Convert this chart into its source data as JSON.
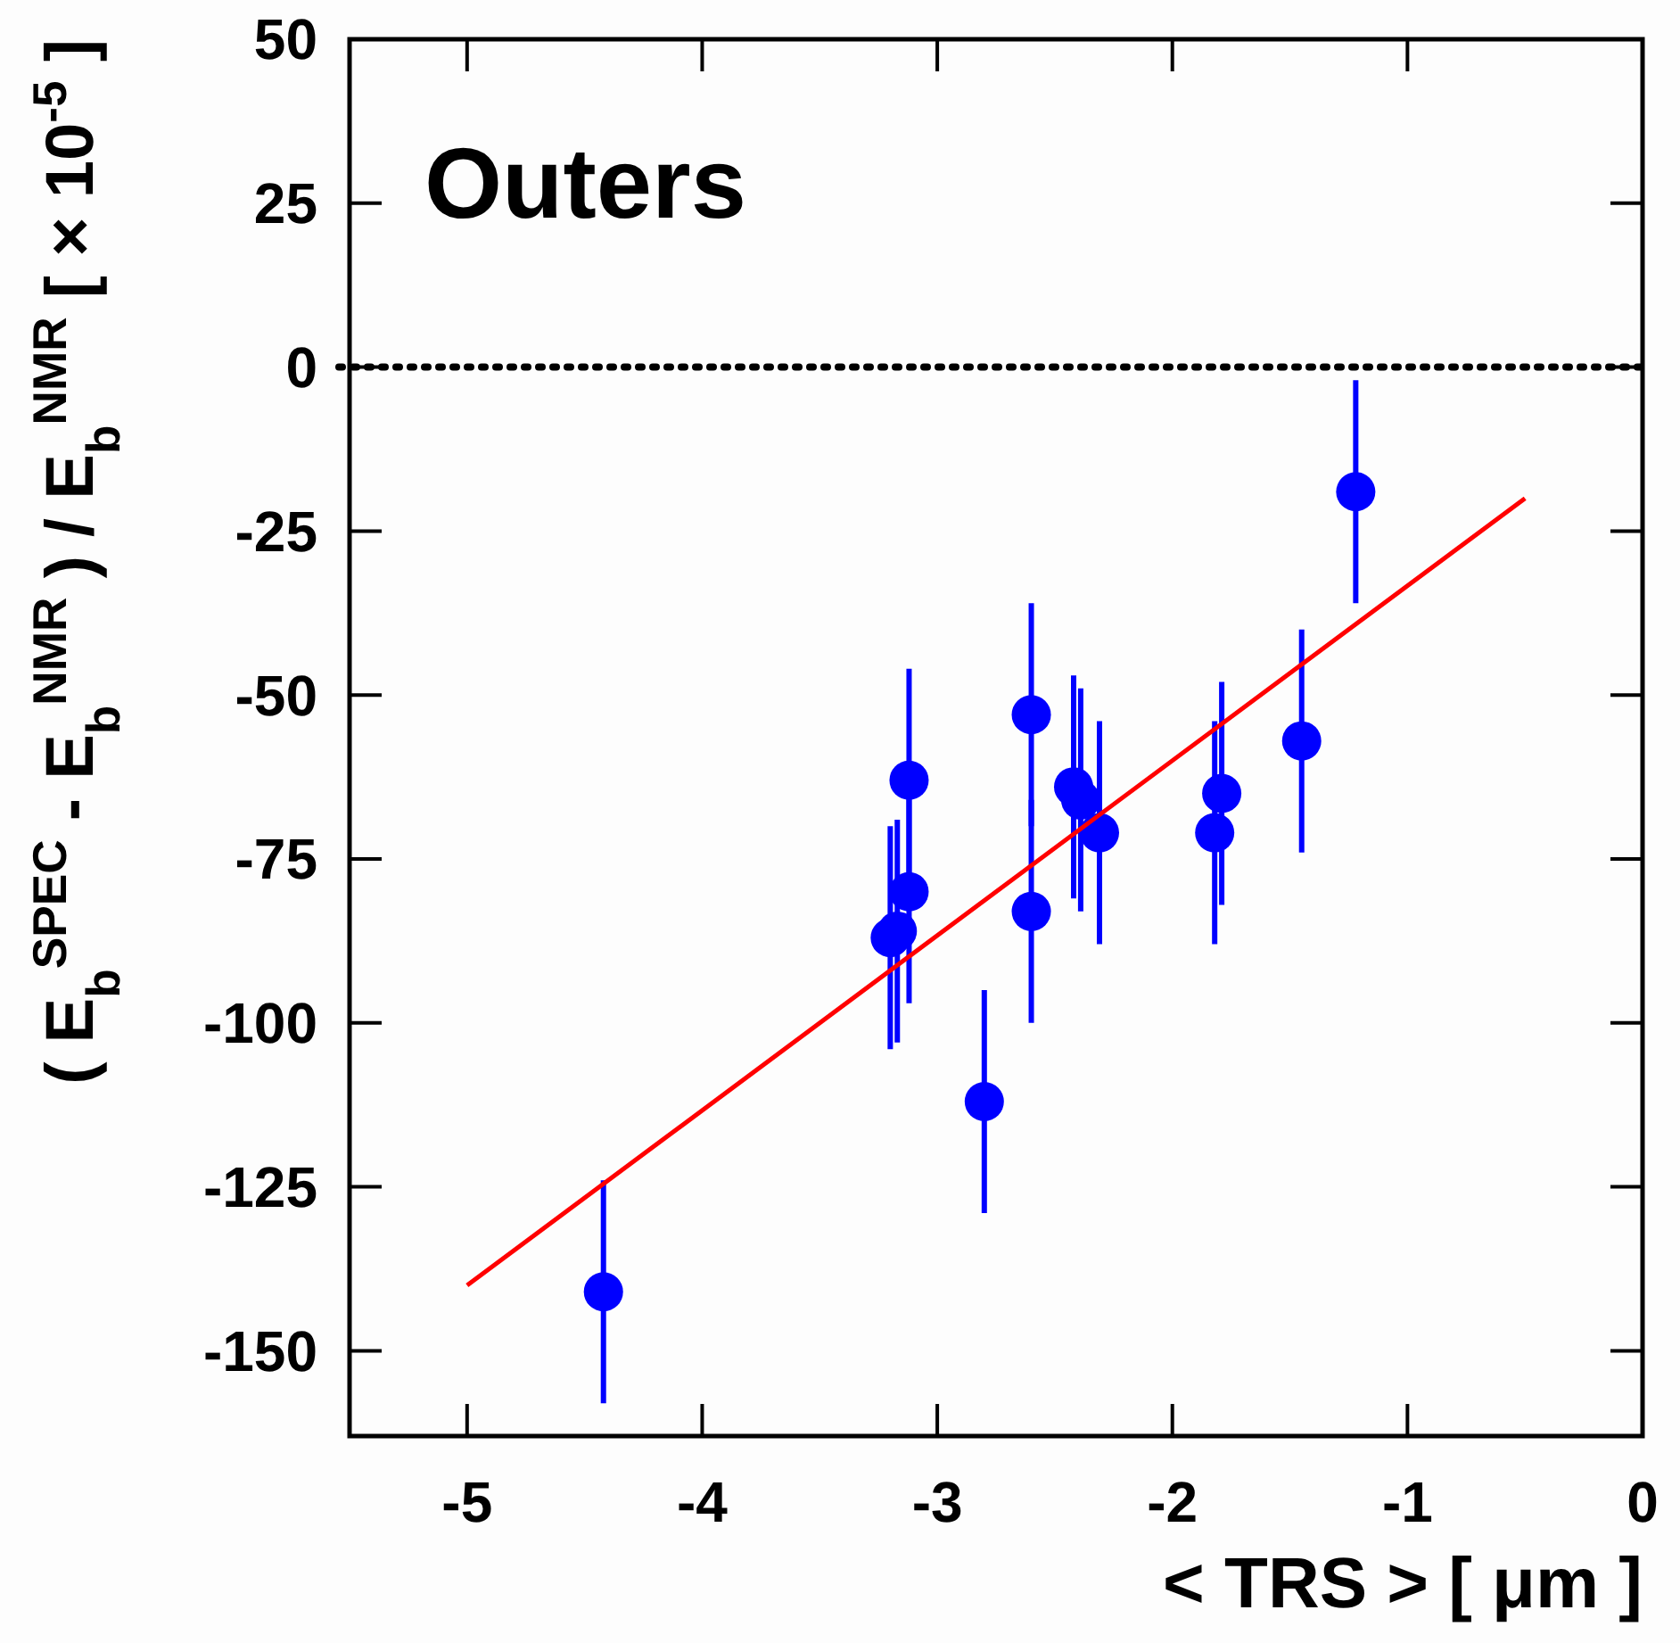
{
  "chart_data": {
    "type": "scatter",
    "title": "Outers",
    "xlabel": "< TRS >  [ μm ]",
    "ylabel": "( E$_{b}$$^{SPEC}$ - E$_{b}$$^{NMR}$ ) / E$_{b}$$^{NMR}$  [ × 10$^{-5}$ ]",
    "xlim": [
      -5.5,
      0
    ],
    "xticks": [
      -5,
      -4,
      -3,
      -2,
      -1,
      0
    ],
    "ylim": [
      -163,
      50
    ],
    "yticks": [
      50,
      25,
      0,
      -25,
      -50,
      -75,
      -100,
      -125,
      -150
    ],
    "grid": false,
    "marker": "circle",
    "series": [
      {
        "color": "#0000ff",
        "x": [
          -4.42,
          -3.2,
          -3.17,
          -3.12,
          -3.12,
          -2.8,
          -2.6,
          -2.6,
          -2.42,
          -2.39,
          -2.31,
          -1.82,
          -1.79,
          -1.45,
          -1.22
        ],
        "values": [
          -141,
          -87,
          -86,
          -80,
          -63,
          -112,
          -53,
          -83,
          -64,
          -66,
          -71,
          -71,
          -65,
          -57,
          -19
        ],
        "errors": [
          17,
          17,
          17,
          17,
          17,
          17,
          17,
          17,
          17,
          17,
          17,
          17,
          17,
          17,
          17
        ]
      },
      {
        "type": "line",
        "marker": "none",
        "color": "#ff0000",
        "x": [
          -5,
          -0.5
        ],
        "values": [
          -140,
          -20
        ]
      }
    ],
    "ref_lines": [
      {
        "axis": "y",
        "value": 0,
        "color": "#000000",
        "line_style": "dotted"
      }
    ]
  }
}
